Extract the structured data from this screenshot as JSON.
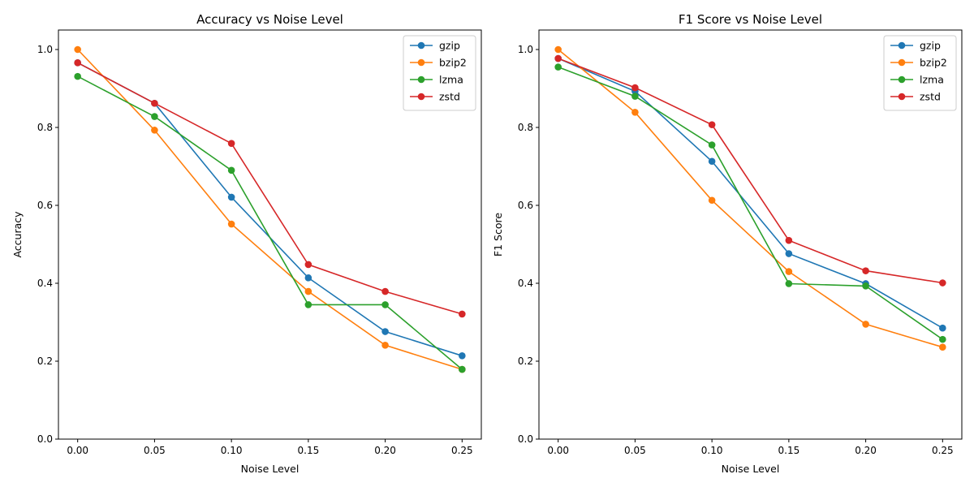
{
  "chart_data": [
    {
      "type": "line",
      "title": "Accuracy vs Noise Level",
      "xlabel": "Noise Level",
      "ylabel": "Accuracy",
      "x": [
        0.0,
        0.05,
        0.1,
        0.15,
        0.2,
        0.25
      ],
      "xticks": [
        "0.00",
        "0.05",
        "0.10",
        "0.15",
        "0.20",
        "0.25"
      ],
      "yticks": [
        "0.0",
        "0.2",
        "0.4",
        "0.6",
        "0.8",
        "1.0"
      ],
      "xlim": [
        -0.0125,
        0.2625
      ],
      "ylim": [
        0,
        1.05
      ],
      "legend_position": "upper-right",
      "series": [
        {
          "name": "gzip",
          "color": "#1f77b4",
          "values": [
            0.966,
            0.862,
            0.621,
            0.414,
            0.276,
            0.214
          ]
        },
        {
          "name": "bzip2",
          "color": "#ff7f0e",
          "values": [
            1.0,
            0.793,
            0.552,
            0.379,
            0.241,
            0.179
          ]
        },
        {
          "name": "lzma",
          "color": "#2ca02c",
          "values": [
            0.931,
            0.828,
            0.69,
            0.345,
            0.345,
            0.179
          ]
        },
        {
          "name": "zstd",
          "color": "#d62728",
          "values": [
            0.966,
            0.862,
            0.759,
            0.448,
            0.379,
            0.321
          ]
        }
      ]
    },
    {
      "type": "line",
      "title": "F1 Score vs Noise Level",
      "xlabel": "Noise Level",
      "ylabel": "F1 Score",
      "x": [
        0.0,
        0.05,
        0.1,
        0.15,
        0.2,
        0.25
      ],
      "xticks": [
        "0.00",
        "0.05",
        "0.10",
        "0.15",
        "0.20",
        "0.25"
      ],
      "yticks": [
        "0.0",
        "0.2",
        "0.4",
        "0.6",
        "0.8",
        "1.0"
      ],
      "xlim": [
        -0.0125,
        0.2625
      ],
      "ylim": [
        0,
        1.05
      ],
      "legend_position": "upper-right",
      "series": [
        {
          "name": "gzip",
          "color": "#1f77b4",
          "values": [
            0.977,
            0.893,
            0.713,
            0.476,
            0.399,
            0.285
          ]
        },
        {
          "name": "bzip2",
          "color": "#ff7f0e",
          "values": [
            1.0,
            0.839,
            0.613,
            0.43,
            0.295,
            0.236
          ]
        },
        {
          "name": "lzma",
          "color": "#2ca02c",
          "values": [
            0.955,
            0.88,
            0.755,
            0.399,
            0.393,
            0.256
          ]
        },
        {
          "name": "zstd",
          "color": "#d62728",
          "values": [
            0.977,
            0.902,
            0.807,
            0.51,
            0.432,
            0.401
          ]
        }
      ]
    }
  ]
}
